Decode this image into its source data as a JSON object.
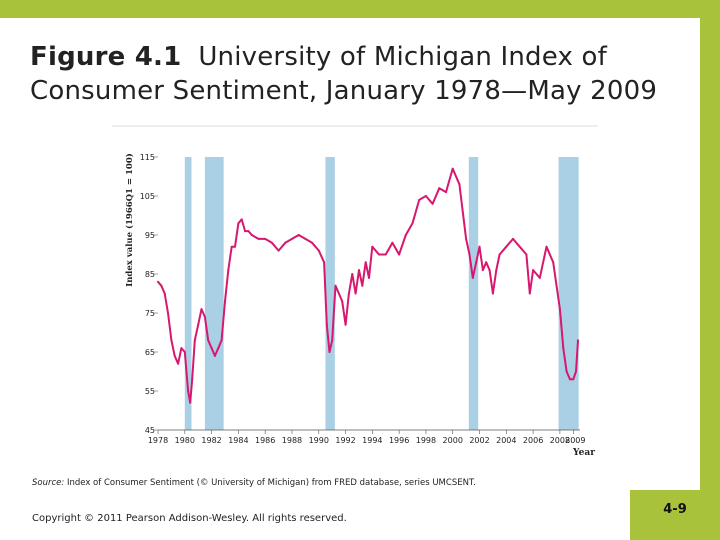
{
  "slide": {
    "title_label": "Figure 4.1",
    "title_rest": "University of Michigan Index of",
    "title_line2": "Consumer Sentiment, January 1978—May 2009",
    "source_label": "Source:",
    "source_text": "Index of Consumer Sentiment (© University of Michigan) from FRED database, series UMCSENT.",
    "copyright": "Copyright © 2011 Pearson Addison-Wesley. All rights reserved.",
    "page_number": "4-9"
  },
  "colors": {
    "accent_band": "#a8c23c",
    "line": "#d6186e",
    "recession_shading": "#a9d0e4"
  },
  "chart_data": {
    "type": "line",
    "title": "",
    "xlabel": "Year",
    "ylabel": "Index value (1966Q1 = 100)",
    "xlim": [
      1978,
      2009.5
    ],
    "ylim": [
      45,
      115
    ],
    "y_ticks": [
      45,
      55,
      65,
      75,
      85,
      95,
      105,
      115
    ],
    "x_ticks": [
      "1978",
      "1980",
      "1982",
      "1984",
      "1986",
      "1988",
      "1990",
      "1992",
      "1994",
      "1996",
      "1998",
      "2000",
      "2002",
      "2004",
      "2006",
      "2008",
      "2009"
    ],
    "recessions": [
      [
        1980.0,
        1980.5
      ],
      [
        1981.5,
        1982.9
      ],
      [
        1990.5,
        1991.2
      ],
      [
        2001.2,
        2001.9
      ],
      [
        2007.9,
        2009.4
      ]
    ],
    "series": [
      {
        "x": [
          1978.0,
          1978.25,
          1978.5,
          1978.75,
          1979.0,
          1979.25,
          1979.5,
          1979.75,
          1980.0,
          1980.25,
          1980.4,
          1980.55,
          1980.75,
          1981.0,
          1981.25,
          1981.5,
          1981.75,
          1982.0,
          1982.25,
          1982.5,
          1982.75,
          1983.0,
          1983.25,
          1983.5,
          1983.75,
          1984.0,
          1984.25,
          1984.5,
          1984.75,
          1985.0,
          1985.5,
          1986.0,
          1986.5,
          1987.0,
          1987.5,
          1988.0,
          1988.5,
          1989.0,
          1989.5,
          1990.0,
          1990.4,
          1990.6,
          1990.8,
          1991.0,
          1991.25,
          1991.5,
          1991.75,
          1992.0,
          1992.25,
          1992.5,
          1992.75,
          1993.0,
          1993.25,
          1993.5,
          1993.75,
          1994.0,
          1994.5,
          1995.0,
          1995.5,
          1996.0,
          1996.5,
          1997.0,
          1997.5,
          1998.0,
          1998.5,
          1999.0,
          1999.5,
          2000.0,
          2000.5,
          2001.0,
          2001.25,
          2001.5,
          2001.75,
          2002.0,
          2002.25,
          2002.5,
          2002.75,
          2003.0,
          2003.25,
          2003.5,
          2004.0,
          2004.5,
          2005.0,
          2005.5,
          2005.75,
          2006.0,
          2006.5,
          2007.0,
          2007.5,
          2008.0,
          2008.25,
          2008.5,
          2008.75,
          2009.0,
          2009.2,
          2009.35
        ],
        "values": [
          83,
          82,
          80,
          75,
          68,
          64,
          62,
          66,
          65,
          55,
          52,
          58,
          68,
          72,
          76,
          74,
          68,
          66,
          64,
          66,
          68,
          78,
          86,
          92,
          92,
          98,
          99,
          96,
          96,
          95,
          94,
          94,
          93,
          91,
          93,
          94,
          95,
          94,
          93,
          91,
          88,
          72,
          65,
          68,
          82,
          80,
          78,
          72,
          80,
          85,
          80,
          86,
          82,
          88,
          84,
          92,
          90,
          90,
          93,
          90,
          95,
          98,
          104,
          105,
          103,
          107,
          106,
          112,
          108,
          94,
          90,
          84,
          88,
          92,
          86,
          88,
          86,
          80,
          86,
          90,
          92,
          94,
          92,
          90,
          80,
          86,
          84,
          92,
          88,
          76,
          66,
          60,
          58,
          58,
          60,
          68
        ]
      }
    ]
  }
}
